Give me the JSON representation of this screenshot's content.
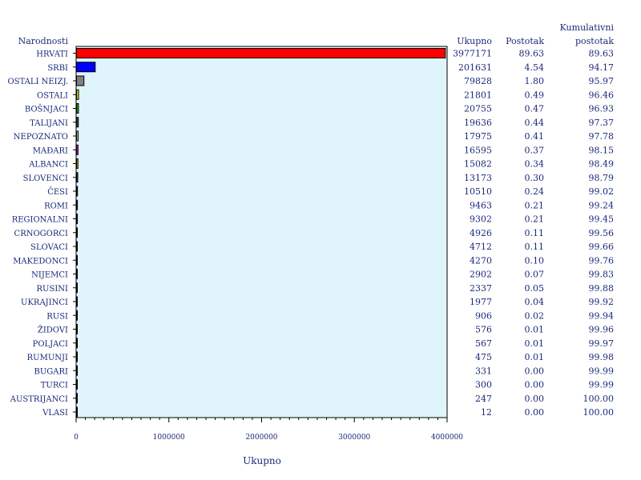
{
  "chart_data": {
    "type": "bar",
    "orientation": "horizontal",
    "category_header": "Narodnosti",
    "xlabel": "Ukupno",
    "xlim": [
      0,
      4000000
    ],
    "x_ticks": [
      "0",
      "1000000",
      "2000000",
      "3000000",
      "4000000"
    ],
    "plot_background": "#e0f4fc",
    "column_headers": {
      "total": "Ukupno",
      "percent": "Postotak",
      "cumulative_line1": "Kumulativni",
      "cumulative_line2": "postotak"
    },
    "categories": [
      "HRVATI",
      "SRBI",
      "OSTALI NEIZJ.",
      "OSTALI",
      "BOŠNJACI",
      "TALIJANI",
      "NEPOZNATO",
      "MAĐARI",
      "ALBANCI",
      "SLOVENCI",
      "ČESI",
      "ROMI",
      "REGIONALNI",
      "CRNOGORCI",
      "SLOVACI",
      "MAKEDONCI",
      "NIJEMCI",
      "RUSINI",
      "UKRAJINCI",
      "RUSI",
      "ŽIDOVI",
      "POLJACI",
      "RUMUNJI",
      "BUGARI",
      "TURCI",
      "AUSTRIJANCI",
      "VLASI"
    ],
    "values": [
      3977171,
      201631,
      79828,
      21801,
      20755,
      19636,
      17975,
      16595,
      15082,
      13173,
      10510,
      9463,
      9302,
      4926,
      4712,
      4270,
      2902,
      2337,
      1977,
      906,
      576,
      567,
      475,
      331,
      300,
      247,
      12
    ],
    "values_text": [
      "3977171",
      "201631",
      "79828",
      "21801",
      "20755",
      "19636",
      "17975",
      "16595",
      "15082",
      "13173",
      "10510",
      "9463",
      "9302",
      "4926",
      "4712",
      "4270",
      "2902",
      "2337",
      "1977",
      "906",
      "576",
      "567",
      "475",
      "331",
      "300",
      "247",
      "12"
    ],
    "percent_text": [
      "89.63",
      "4.54",
      "1.80",
      "0.49",
      "0.47",
      "0.44",
      "0.41",
      "0.37",
      "0.34",
      "0.30",
      "0.24",
      "0.21",
      "0.21",
      "0.11",
      "0.11",
      "0.10",
      "0.07",
      "0.05",
      "0.04",
      "0.02",
      "0.01",
      "0.01",
      "0.01",
      "0.00",
      "0.00",
      "0.00",
      "0.00"
    ],
    "cumulative_text": [
      "89.63",
      "94.17",
      "95.97",
      "96.46",
      "96.93",
      "97.37",
      "97.78",
      "98.15",
      "98.49",
      "98.79",
      "99.02",
      "99.24",
      "99.45",
      "99.56",
      "99.66",
      "99.76",
      "99.83",
      "99.88",
      "99.92",
      "99.94",
      "99.96",
      "99.97",
      "99.98",
      "99.99",
      "99.99",
      "100.00",
      "100.00"
    ],
    "bar_colors": [
      "#ff0000",
      "#0000ff",
      "#808080",
      "#cccc00",
      "#00a000",
      "#404040",
      "#b0b0b0",
      "#cc00cc",
      "#cc8800",
      "#303030",
      "#303030",
      "#805000",
      "#505050",
      "#1a2a7a",
      "#1a2a7a",
      "#1a2a7a",
      "#1a2a7a",
      "#1a2a7a",
      "#1a2a7a",
      "#1a2a7a",
      "#1a2a7a",
      "#1a2a7a",
      "#1a2a7a",
      "#1a2a7a",
      "#1a2a7a",
      "#1a2a7a",
      "#1a2a7a"
    ]
  }
}
